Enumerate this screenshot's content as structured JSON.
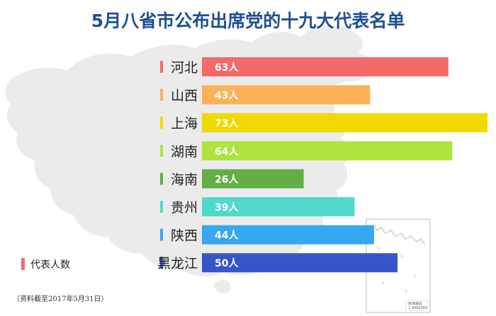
{
  "chart_data": {
    "type": "bar",
    "orientation": "horizontal",
    "title": "5月八省市公布出席党的十九大代表名单",
    "categories": [
      "河北",
      "山西",
      "上海",
      "湖南",
      "海南",
      "贵州",
      "陕西",
      "黑龙江"
    ],
    "values": [
      63,
      43,
      73,
      64,
      26,
      39,
      44,
      50
    ],
    "value_labels": [
      "63人",
      "43人",
      "73人",
      "64人",
      "26人",
      "39人",
      "44人",
      "50人"
    ],
    "colors": [
      "#f46a6b",
      "#fbb157",
      "#f1d900",
      "#aee340",
      "#64ad47",
      "#51d9cc",
      "#35a7f3",
      "#3854cb"
    ],
    "xlim": [
      0,
      73
    ],
    "legend": {
      "label": "代表人数",
      "position": "bottom-left",
      "color": "#f46a6b"
    },
    "note": "（资料截至2017年5月31日）",
    "inset_label": "南海诸岛",
    "inset_scale": "1:4000000",
    "grid": false
  }
}
